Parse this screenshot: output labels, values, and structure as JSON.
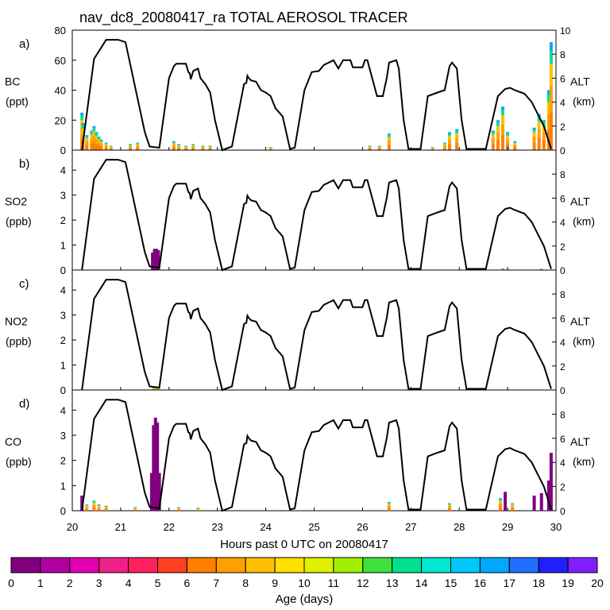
{
  "chart_data": {
    "type": "area",
    "title": "nav_dc8_20080417_ra TOTAL AEROSOL TRACER",
    "xlabel": "Hours past 0 UTC on 20080417",
    "x_ticks": [
      "20",
      "21",
      "22",
      "23",
      "24",
      "25",
      "26",
      "27",
      "28",
      "29",
      "30"
    ],
    "xlim": [
      20,
      30
    ],
    "altitude_axis": {
      "label": "ALT",
      "unit": "(km)",
      "ylim": [
        0,
        10
      ]
    },
    "altitude_profile": [
      [
        20.2,
        0
      ],
      [
        20.45,
        7.6
      ],
      [
        20.7,
        9.2
      ],
      [
        20.95,
        9.2
      ],
      [
        21.1,
        9.0
      ],
      [
        21.5,
        1.5
      ],
      [
        21.6,
        0.3
      ],
      [
        21.8,
        0.2
      ],
      [
        22.0,
        6.0
      ],
      [
        22.1,
        7.0
      ],
      [
        22.15,
        7.2
      ],
      [
        22.35,
        7.2
      ],
      [
        22.4,
        6.5
      ],
      [
        22.43,
        6.4
      ],
      [
        22.45,
        5.9
      ],
      [
        22.5,
        6.6
      ],
      [
        22.6,
        6.8
      ],
      [
        22.65,
        6.0
      ],
      [
        22.75,
        5.5
      ],
      [
        22.85,
        4.8
      ],
      [
        22.95,
        2.5
      ],
      [
        23.1,
        0
      ],
      [
        23.3,
        0.3
      ],
      [
        23.55,
        5.5
      ],
      [
        23.6,
        5.6
      ],
      [
        23.62,
        6.2
      ],
      [
        23.65,
        6.0
      ],
      [
        23.7,
        5.8
      ],
      [
        23.8,
        5.7
      ],
      [
        23.9,
        5.0
      ],
      [
        24.0,
        4.8
      ],
      [
        24.1,
        4.5
      ],
      [
        24.2,
        3.5
      ],
      [
        24.35,
        2.8
      ],
      [
        24.45,
        1.0
      ],
      [
        24.5,
        0.1
      ],
      [
        24.6,
        0.2
      ],
      [
        24.8,
        5.0
      ],
      [
        24.95,
        6.5
      ],
      [
        25.1,
        6.6
      ],
      [
        25.2,
        7.1
      ],
      [
        25.4,
        7.5
      ],
      [
        25.5,
        6.8
      ],
      [
        25.6,
        7.5
      ],
      [
        25.75,
        7.5
      ],
      [
        25.8,
        6.9
      ],
      [
        26.0,
        6.9
      ],
      [
        26.05,
        7.5
      ],
      [
        26.1,
        7.5
      ],
      [
        26.2,
        6.0
      ],
      [
        26.3,
        4.5
      ],
      [
        26.42,
        4.5
      ],
      [
        26.5,
        6.0
      ],
      [
        26.55,
        7.3
      ],
      [
        26.7,
        7.5
      ],
      [
        26.75,
        6.8
      ],
      [
        26.85,
        2.5
      ],
      [
        26.95,
        0.1
      ],
      [
        27.2,
        0.1
      ],
      [
        27.35,
        4.5
      ],
      [
        27.55,
        4.8
      ],
      [
        27.7,
        5.0
      ],
      [
        27.8,
        7.0
      ],
      [
        27.85,
        7.3
      ],
      [
        27.95,
        6.8
      ],
      [
        28.05,
        2.5
      ],
      [
        28.15,
        0.1
      ],
      [
        28.55,
        0.1
      ],
      [
        28.8,
        4.5
      ],
      [
        28.95,
        5.1
      ],
      [
        29.05,
        5.2
      ],
      [
        29.15,
        5.0
      ],
      [
        29.35,
        4.7
      ],
      [
        29.5,
        4.0
      ],
      [
        29.6,
        3.2
      ],
      [
        29.75,
        2.0
      ],
      [
        29.9,
        0.1
      ]
    ],
    "panels": [
      {
        "id": "a)",
        "species": "BC",
        "unit": "(ppt)",
        "ylim": [
          0,
          80
        ],
        "y_ticks": [
          "0",
          "20",
          "40",
          "60",
          "80"
        ],
        "series": [
          {
            "x": 20.2,
            "total": 25
          },
          {
            "x": 20.22,
            "total": 18
          },
          {
            "x": 20.3,
            "total": 10
          },
          {
            "x": 20.4,
            "total": 13
          },
          {
            "x": 20.45,
            "total": 16
          },
          {
            "x": 20.5,
            "total": 12
          },
          {
            "x": 20.55,
            "total": 9
          },
          {
            "x": 20.6,
            "total": 7
          },
          {
            "x": 20.7,
            "total": 5
          },
          {
            "x": 20.8,
            "total": 3
          },
          {
            "x": 21.2,
            "total": 4
          },
          {
            "x": 21.35,
            "total": 5
          },
          {
            "x": 22.1,
            "total": 6
          },
          {
            "x": 22.2,
            "total": 4
          },
          {
            "x": 22.35,
            "total": 3
          },
          {
            "x": 22.5,
            "total": 4
          },
          {
            "x": 22.7,
            "total": 3
          },
          {
            "x": 22.85,
            "total": 3
          },
          {
            "x": 24.1,
            "total": 2
          },
          {
            "x": 26.15,
            "total": 3
          },
          {
            "x": 26.35,
            "total": 3
          },
          {
            "x": 26.55,
            "total": 11
          },
          {
            "x": 27.45,
            "total": 2
          },
          {
            "x": 27.7,
            "total": 5
          },
          {
            "x": 27.8,
            "total": 12
          },
          {
            "x": 27.95,
            "total": 14
          },
          {
            "x": 28.7,
            "total": 13
          },
          {
            "x": 28.8,
            "total": 20
          },
          {
            "x": 28.9,
            "total": 29
          },
          {
            "x": 29.0,
            "total": 12
          },
          {
            "x": 29.15,
            "total": 6
          },
          {
            "x": 29.55,
            "total": 15
          },
          {
            "x": 29.65,
            "total": 24
          },
          {
            "x": 29.75,
            "total": 20
          },
          {
            "x": 29.85,
            "total": 40
          },
          {
            "x": 29.9,
            "total": 72
          }
        ]
      },
      {
        "id": "b)",
        "species": "SO2",
        "unit": "(ppb)",
        "ylim": [
          0,
          4.8
        ],
        "y_ticks": [
          "0",
          "1",
          "2",
          "3",
          "4"
        ],
        "series": [
          {
            "x": 21.66,
            "total": 0.7
          },
          {
            "x": 21.7,
            "total": 0.85
          },
          {
            "x": 21.74,
            "total": 0.85
          },
          {
            "x": 21.78,
            "total": 0.8
          },
          {
            "x": 28.9,
            "total": 0.06
          },
          {
            "x": 29.7,
            "total": 0.05
          }
        ]
      },
      {
        "id": "c)",
        "species": "NO2",
        "unit": "(ppb)",
        "ylim": [
          0,
          4.8
        ],
        "y_ticks": [
          "0",
          "1",
          "2",
          "3",
          "4"
        ],
        "series": [
          {
            "x": 21.68,
            "total": 0.08
          },
          {
            "x": 21.74,
            "total": 0.1
          },
          {
            "x": 21.78,
            "total": 0.08
          }
        ]
      },
      {
        "id": "d)",
        "species": "CO",
        "unit": "(ppb)",
        "ylim": [
          0,
          4.8
        ],
        "y_ticks": [
          "0",
          "1",
          "2",
          "3",
          "4"
        ],
        "series": [
          {
            "x": 20.2,
            "total": 0.6
          },
          {
            "x": 20.3,
            "total": 0.25
          },
          {
            "x": 20.45,
            "total": 0.4
          },
          {
            "x": 20.55,
            "total": 0.25
          },
          {
            "x": 20.7,
            "total": 0.2
          },
          {
            "x": 21.3,
            "total": 0.15
          },
          {
            "x": 21.64,
            "total": 1.5
          },
          {
            "x": 21.68,
            "total": 3.4
          },
          {
            "x": 21.72,
            "total": 3.7
          },
          {
            "x": 21.76,
            "total": 3.5
          },
          {
            "x": 21.8,
            "total": 1.5
          },
          {
            "x": 22.2,
            "total": 0.15
          },
          {
            "x": 22.6,
            "total": 0.12
          },
          {
            "x": 26.55,
            "total": 0.35
          },
          {
            "x": 27.8,
            "total": 0.3
          },
          {
            "x": 28.85,
            "total": 0.5
          },
          {
            "x": 28.95,
            "total": 0.75
          },
          {
            "x": 29.1,
            "total": 0.3
          },
          {
            "x": 29.55,
            "total": 0.6
          },
          {
            "x": 29.7,
            "total": 0.7
          },
          {
            "x": 29.85,
            "total": 1.2
          },
          {
            "x": 29.9,
            "total": 2.3
          }
        ]
      }
    ],
    "colorbar": {
      "label": "Age (days)",
      "tick_labels": [
        "0",
        "1",
        "2",
        "3",
        "4",
        "5",
        "6",
        "7",
        "8",
        "9",
        "10",
        "11",
        "12",
        "13",
        "14",
        "15",
        "16",
        "17",
        "18",
        "19",
        "20"
      ],
      "colors": [
        "#800080",
        "#b000a0",
        "#e000b0",
        "#f0208a",
        "#ff2060",
        "#ff4020",
        "#ff8000",
        "#ffa000",
        "#ffc000",
        "#ffe000",
        "#e0f000",
        "#a0f000",
        "#40e040",
        "#00e090",
        "#00e8d0",
        "#00c8ff",
        "#00a8ff",
        "#2070ff",
        "#2020ff",
        "#8020ff"
      ]
    }
  }
}
